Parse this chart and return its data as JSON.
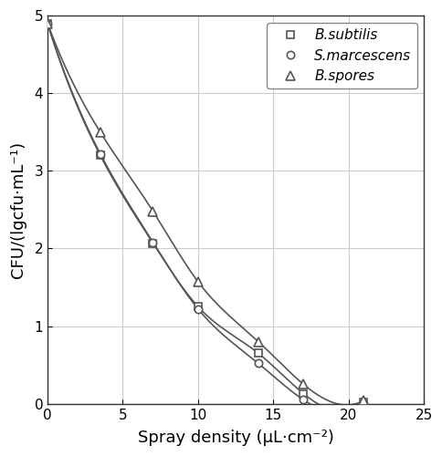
{
  "b_subtilis_x": [
    0,
    3.5,
    7,
    10,
    14,
    17,
    21
  ],
  "b_subtilis_y": [
    4.9,
    3.2,
    2.07,
    1.25,
    0.65,
    0.13,
    0.02
  ],
  "s_marcescens_x": [
    0,
    3.5,
    7,
    10,
    14,
    17,
    21
  ],
  "s_marcescens_y": [
    4.9,
    3.22,
    2.08,
    1.22,
    0.52,
    0.05,
    0.0
  ],
  "b_spores_x": [
    0,
    3.5,
    7,
    10,
    14,
    17,
    21
  ],
  "b_spores_y": [
    4.9,
    3.5,
    2.48,
    1.57,
    0.8,
    0.25,
    0.04
  ],
  "xlabel": "Spray density (μL·cm⁻²)",
  "ylabel": "CFU/(lgcfu·mL⁻¹)",
  "xlim": [
    0,
    25
  ],
  "ylim": [
    0,
    5
  ],
  "xticks": [
    0,
    5,
    10,
    15,
    20,
    25
  ],
  "yticks": [
    0,
    1,
    2,
    3,
    4,
    5
  ],
  "line_color": "#555555",
  "legend_labels": [
    "B.subtilis",
    "S.marcescens",
    "B.spores"
  ],
  "grid_color": "#cccccc",
  "background_color": "#ffffff"
}
